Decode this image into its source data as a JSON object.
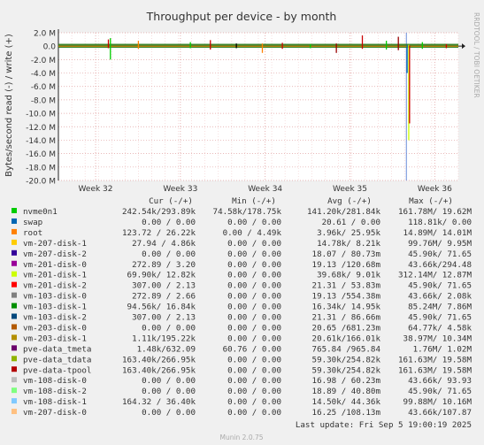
{
  "chart_data": {
    "type": "line",
    "title": "Throughput per device - by month",
    "ylabel": "Bytes/second read (-) / write (+)",
    "ylim": [
      -20000000,
      2000000
    ],
    "y_ticks": [
      "2.0 M",
      "0.0",
      "-2.0 M",
      "-4.0 M",
      "-6.0 M",
      "-8.0 M",
      "-10.0 M",
      "-12.0 M",
      "-14.0 M",
      "-16.0 M",
      "-18.0 M",
      "-20.0 M"
    ],
    "y_tick_values": [
      2000000,
      0,
      -2000000,
      -4000000,
      -6000000,
      -8000000,
      -10000000,
      -12000000,
      -14000000,
      -16000000,
      -18000000,
      -20000000
    ],
    "x_ticks": [
      "Week 32",
      "Week 33",
      "Week 34",
      "Week 35",
      "Week 36"
    ],
    "x_tick_pos": [
      0.093,
      0.305,
      0.517,
      0.729,
      0.941
    ],
    "grid": true,
    "watermark": "RRDTOOL / TOBI OETIKER",
    "now_marker": 0.87,
    "spikes": [
      {
        "x": 0.13,
        "lo": -2000000,
        "hi": 1200000,
        "color": "#00cc00"
      },
      {
        "x": 0.125,
        "lo": -300000,
        "hi": 1000000,
        "color": "#cc0000"
      },
      {
        "x": 0.2,
        "lo": -400000,
        "hi": 800000,
        "color": "#ff8000"
      },
      {
        "x": 0.33,
        "lo": -300000,
        "hi": 600000,
        "color": "#00cc00"
      },
      {
        "x": 0.38,
        "lo": -500000,
        "hi": 900000,
        "color": "#cc0000"
      },
      {
        "x": 0.445,
        "lo": -300000,
        "hi": 400000,
        "color": "#000000"
      },
      {
        "x": 0.51,
        "lo": -1000000,
        "hi": 400000,
        "color": "#ff8000"
      },
      {
        "x": 0.56,
        "lo": -400000,
        "hi": 500000,
        "color": "#cc0000"
      },
      {
        "x": 0.63,
        "lo": -300000,
        "hi": 300000,
        "color": "#00cc00"
      },
      {
        "x": 0.695,
        "lo": -1000000,
        "hi": 400000,
        "color": "#990000"
      },
      {
        "x": 0.76,
        "lo": -400000,
        "hi": 1600000,
        "color": "#cc0000"
      },
      {
        "x": 0.82,
        "lo": -500000,
        "hi": 800000,
        "color": "#00cc00"
      },
      {
        "x": 0.85,
        "lo": -600000,
        "hi": 1400000,
        "color": "#990000"
      },
      {
        "x": 0.872,
        "lo": -4000000,
        "hi": 200000,
        "color": "#0066b3"
      },
      {
        "x": 0.876,
        "lo": -14000000,
        "hi": 200000,
        "color": "#ccff00"
      },
      {
        "x": 0.878,
        "lo": -11500000,
        "hi": 100000,
        "color": "#cc0000"
      },
      {
        "x": 0.91,
        "lo": -400000,
        "hi": 600000,
        "color": "#00cc00"
      },
      {
        "x": 0.97,
        "lo": -300000,
        "hi": 300000,
        "color": "#cc0000"
      }
    ]
  },
  "legend_header": {
    "cur": "Cur (-/+)",
    "min": "Min (-/+)",
    "avg": "Avg (-/+)",
    "max": "Max (-/+)"
  },
  "legend": [
    {
      "name": "nvme0n1",
      "color": "#00cc00",
      "cur": "242.54k/293.89k",
      "min": "74.58k/178.75k",
      "avg": "141.20k/281.84k",
      "max": "161.78M/ 19.62M"
    },
    {
      "name": "swap",
      "color": "#0066b3",
      "cur": "0.00 /  0.00",
      "min": "0.00 /  0.00",
      "avg": "20.61 /  0.00",
      "max": "118.81k/  0.00"
    },
    {
      "name": "root",
      "color": "#ff8000",
      "cur": "123.72 / 26.22k",
      "min": "0.00 /  4.49k",
      "avg": "3.96k/ 25.95k",
      "max": "14.89M/ 14.01M"
    },
    {
      "name": "vm-207-disk-1",
      "color": "#ffcc00",
      "cur": "27.94 /  4.86k",
      "min": "0.00 /  0.00",
      "avg": "14.78k/  8.21k",
      "max": "99.76M/  9.95M"
    },
    {
      "name": "vm-207-disk-2",
      "color": "#330099",
      "cur": "0.00 /  0.00",
      "min": "0.00 /  0.00",
      "avg": "18.07 / 80.73m",
      "max": "45.90k/ 71.65"
    },
    {
      "name": "vm-201-disk-0",
      "color": "#990099",
      "cur": "272.89 /  3.20",
      "min": "0.00 /  0.00",
      "avg": "19.13 /120.68m",
      "max": "43.66k/294.48"
    },
    {
      "name": "vm-201-disk-1",
      "color": "#ccff00",
      "cur": "69.90k/ 12.82k",
      "min": "0.00 /  0.00",
      "avg": "39.68k/  9.01k",
      "max": "312.14M/ 12.87M"
    },
    {
      "name": "vm-201-disk-2",
      "color": "#ff0000",
      "cur": "307.00 /  2.13",
      "min": "0.00 /  0.00",
      "avg": "21.31 / 53.83m",
      "max": "45.90k/ 71.65"
    },
    {
      "name": "vm-103-disk-0",
      "color": "#808080",
      "cur": "272.89 /  2.66",
      "min": "0.00 /  0.00",
      "avg": "19.13 /554.38m",
      "max": "43.66k/  2.08k"
    },
    {
      "name": "vm-103-disk-1",
      "color": "#008f00",
      "cur": "94.56k/ 16.84k",
      "min": "0.00 /  0.00",
      "avg": "16.34k/ 14.95k",
      "max": "85.24M/  7.86M"
    },
    {
      "name": "vm-103-disk-2",
      "color": "#00487d",
      "cur": "307.00 /  2.13",
      "min": "0.00 /  0.00",
      "avg": "21.31 / 86.66m",
      "max": "45.90k/ 71.65"
    },
    {
      "name": "vm-203-disk-0",
      "color": "#b35a00",
      "cur": "0.00 /  0.00",
      "min": "0.00 /  0.00",
      "avg": "20.65 /681.23m",
      "max": "64.77k/  4.58k"
    },
    {
      "name": "vm-203-disk-1",
      "color": "#b38f00",
      "cur": "1.11k/195.22k",
      "min": "0.00 /  0.00",
      "avg": "20.61k/166.01k",
      "max": "38.97M/ 10.34M"
    },
    {
      "name": "pve-data_tmeta",
      "color": "#6b006b",
      "cur": "1.48k/632.09",
      "min": "60.76 /  0.00",
      "avg": "765.84 /965.84",
      "max": "1.76M/  1.02M"
    },
    {
      "name": "pve-data_tdata",
      "color": "#8fb300",
      "cur": "163.40k/266.95k",
      "min": "0.00 /  0.00",
      "avg": "59.30k/254.82k",
      "max": "161.63M/ 19.58M"
    },
    {
      "name": "pve-data-tpool",
      "color": "#b30000",
      "cur": "163.40k/266.95k",
      "min": "0.00 /  0.00",
      "avg": "59.30k/254.82k",
      "max": "161.63M/ 19.58M"
    },
    {
      "name": "vm-108-disk-0",
      "color": "#bebebe",
      "cur": "0.00 /  0.00",
      "min": "0.00 /  0.00",
      "avg": "16.98 / 60.23m",
      "max": "43.66k/ 93.93"
    },
    {
      "name": "vm-108-disk-2",
      "color": "#80ff80",
      "cur": "0.00 /  0.00",
      "min": "0.00 /  0.00",
      "avg": "18.89 / 40.80m",
      "max": "45.90k/ 71.65"
    },
    {
      "name": "vm-108-disk-1",
      "color": "#80c9ff",
      "cur": "164.32 / 36.40k",
      "min": "0.00 /  0.00",
      "avg": "14.50k/ 44.36k",
      "max": "99.88M/ 10.16M"
    },
    {
      "name": "vm-207-disk-0",
      "color": "#ffc080",
      "cur": "0.00 /  0.00",
      "min": "0.00 /  0.00",
      "avg": "16.25 /108.13m",
      "max": "43.66k/107.87"
    }
  ],
  "last_update": "Last update: Fri Sep  5 19:00:19 2025",
  "footer": "Munin 2.0.75"
}
